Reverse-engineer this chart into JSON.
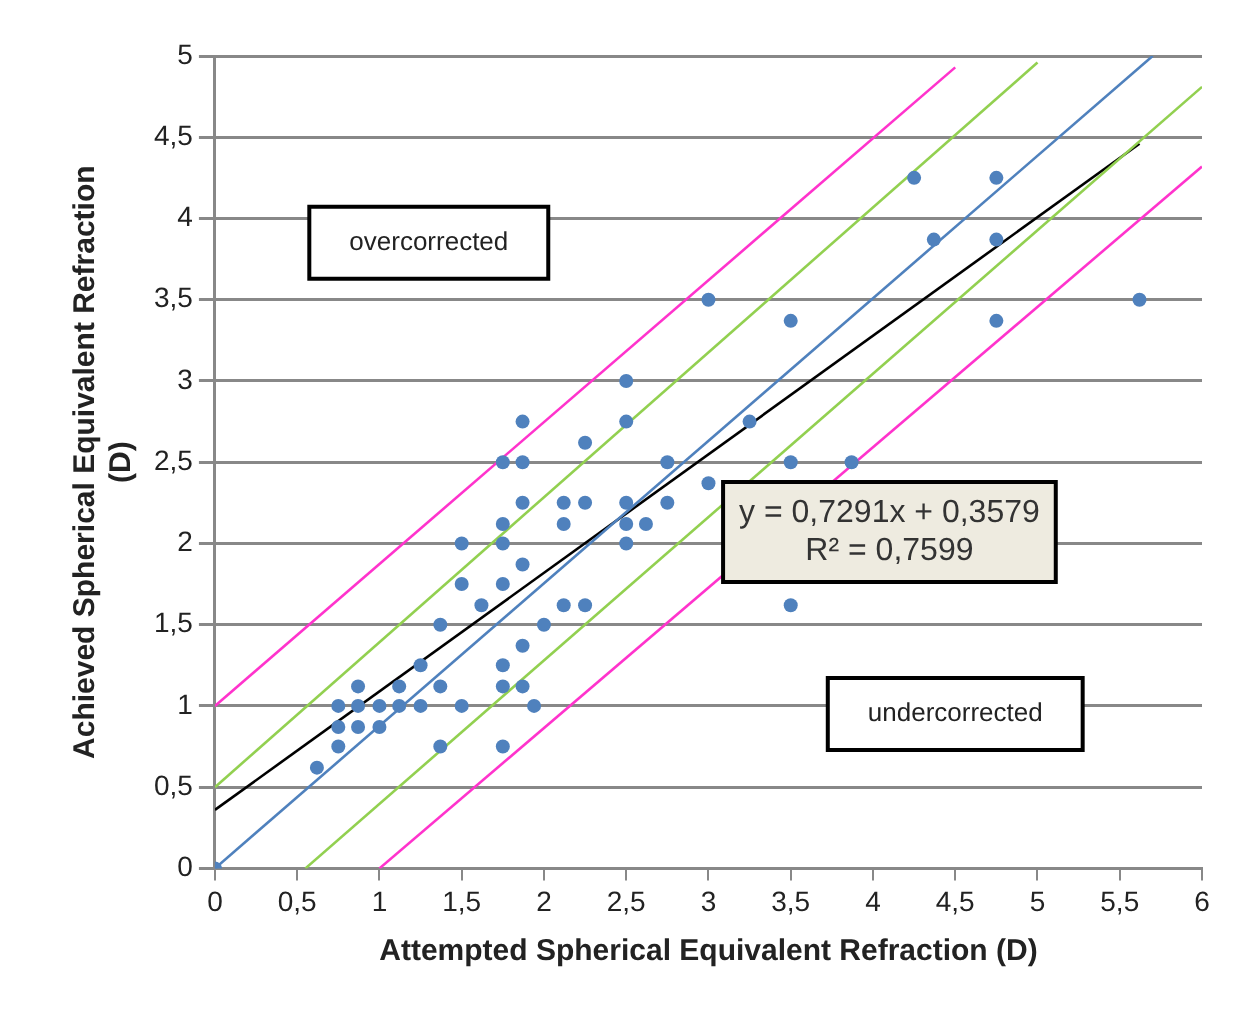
{
  "chart_data": {
    "type": "scatter",
    "xlabel": "Attempted Spherical Equivalent Refraction (D)",
    "ylabel": "Achieved Spherical Equivalent Refraction (D)",
    "xlim": [
      0,
      6
    ],
    "ylim": [
      0,
      5
    ],
    "xticks": [
      0,
      {
        "value": 0.5,
        "label": "0,5"
      },
      1,
      {
        "value": 1.5,
        "label": "1,5"
      },
      2,
      {
        "value": 2.5,
        "label": "2,5"
      },
      3,
      {
        "value": 3.5,
        "label": "3,5"
      },
      4,
      {
        "value": 4.5,
        "label": "4,5"
      },
      5,
      {
        "value": 5.5,
        "label": "5,5"
      },
      6
    ],
    "yticks": [
      0,
      {
        "value": 0.5,
        "label": "0,5"
      },
      1,
      {
        "value": 1.5,
        "label": "1,5"
      },
      2,
      {
        "value": 2.5,
        "label": "2,5"
      },
      3,
      {
        "value": 3.5,
        "label": "3,5"
      },
      4,
      {
        "value": 4.5,
        "label": "4,5"
      },
      5
    ],
    "grid": "y",
    "legend": false,
    "marker": "circle",
    "series": [
      {
        "color": "#4f81bd",
        "x": [
          0,
          0.62,
          0.75,
          0.75,
          0.75,
          0.87,
          0.87,
          0.87,
          1,
          1,
          1.12,
          1.12,
          1.25,
          1.25,
          1.37,
          1.37,
          1.37,
          1.5,
          1.5,
          1.5,
          3,
          3.5,
          2.5,
          1.87,
          2.5,
          2.25,
          3.25,
          1.75,
          1.87,
          2.75,
          3.5,
          3,
          1.87,
          2.12,
          2.25,
          2.5,
          2.75,
          1.75,
          2.12,
          2.5,
          2.62,
          1.75,
          2.5,
          1.87,
          1.75,
          1.62,
          2.12,
          2.25,
          2,
          1.87,
          1.75,
          3.5,
          4.25,
          4.75,
          4.37,
          4.75,
          4.75,
          5.62,
          3.87,
          1.75,
          1.75,
          1.87,
          1.94
        ],
        "values": [
          0,
          0.62,
          0.75,
          0.87,
          1,
          0.87,
          1,
          1.12,
          0.87,
          1,
          1,
          1.12,
          1,
          1.25,
          1.12,
          0.75,
          1.5,
          1,
          1.75,
          2,
          3.5,
          3.37,
          3,
          2.75,
          2.75,
          2.62,
          2.75,
          2.5,
          2.5,
          2.5,
          2.5,
          2.37,
          2.25,
          2.25,
          2.25,
          2.25,
          2.25,
          2.12,
          2.12,
          2.12,
          2.12,
          2,
          2,
          1.87,
          1.75,
          1.62,
          1.62,
          1.62,
          1.5,
          1.37,
          1.25,
          1.62,
          4.25,
          4.25,
          3.87,
          3.87,
          3.37,
          3.5,
          2.5,
          1.12,
          0.75,
          1.12,
          1
        ]
      },
      {
        "type": "line",
        "marker": "none",
        "color": "#4f81bd",
        "x": [
          0,
          5.7
        ],
        "values": [
          0,
          5
        ]
      },
      {
        "type": "line",
        "marker": "none",
        "color": "#92d050",
        "x": [
          0,
          5
        ],
        "values": [
          0.5,
          4.96
        ]
      },
      {
        "type": "line",
        "marker": "none",
        "color": "#92d050",
        "x": [
          0.55,
          6
        ],
        "values": [
          0,
          4.81
        ]
      },
      {
        "type": "line",
        "marker": "none",
        "color": "#ff33cc",
        "x": [
          0,
          4.5
        ],
        "values": [
          1,
          4.93
        ]
      },
      {
        "type": "line",
        "marker": "none",
        "color": "#ff33cc",
        "x": [
          1,
          6
        ],
        "values": [
          0,
          4.32
        ]
      },
      {
        "type": "line",
        "marker": "none",
        "color": "#000000",
        "x": [
          0,
          5.62
        ],
        "values": [
          0.36,
          4.46
        ]
      }
    ],
    "annotations": [
      "overcorrected",
      "undercorrected",
      "y = 0,7291x + 0,3579\nR² = 0,7599"
    ]
  }
}
